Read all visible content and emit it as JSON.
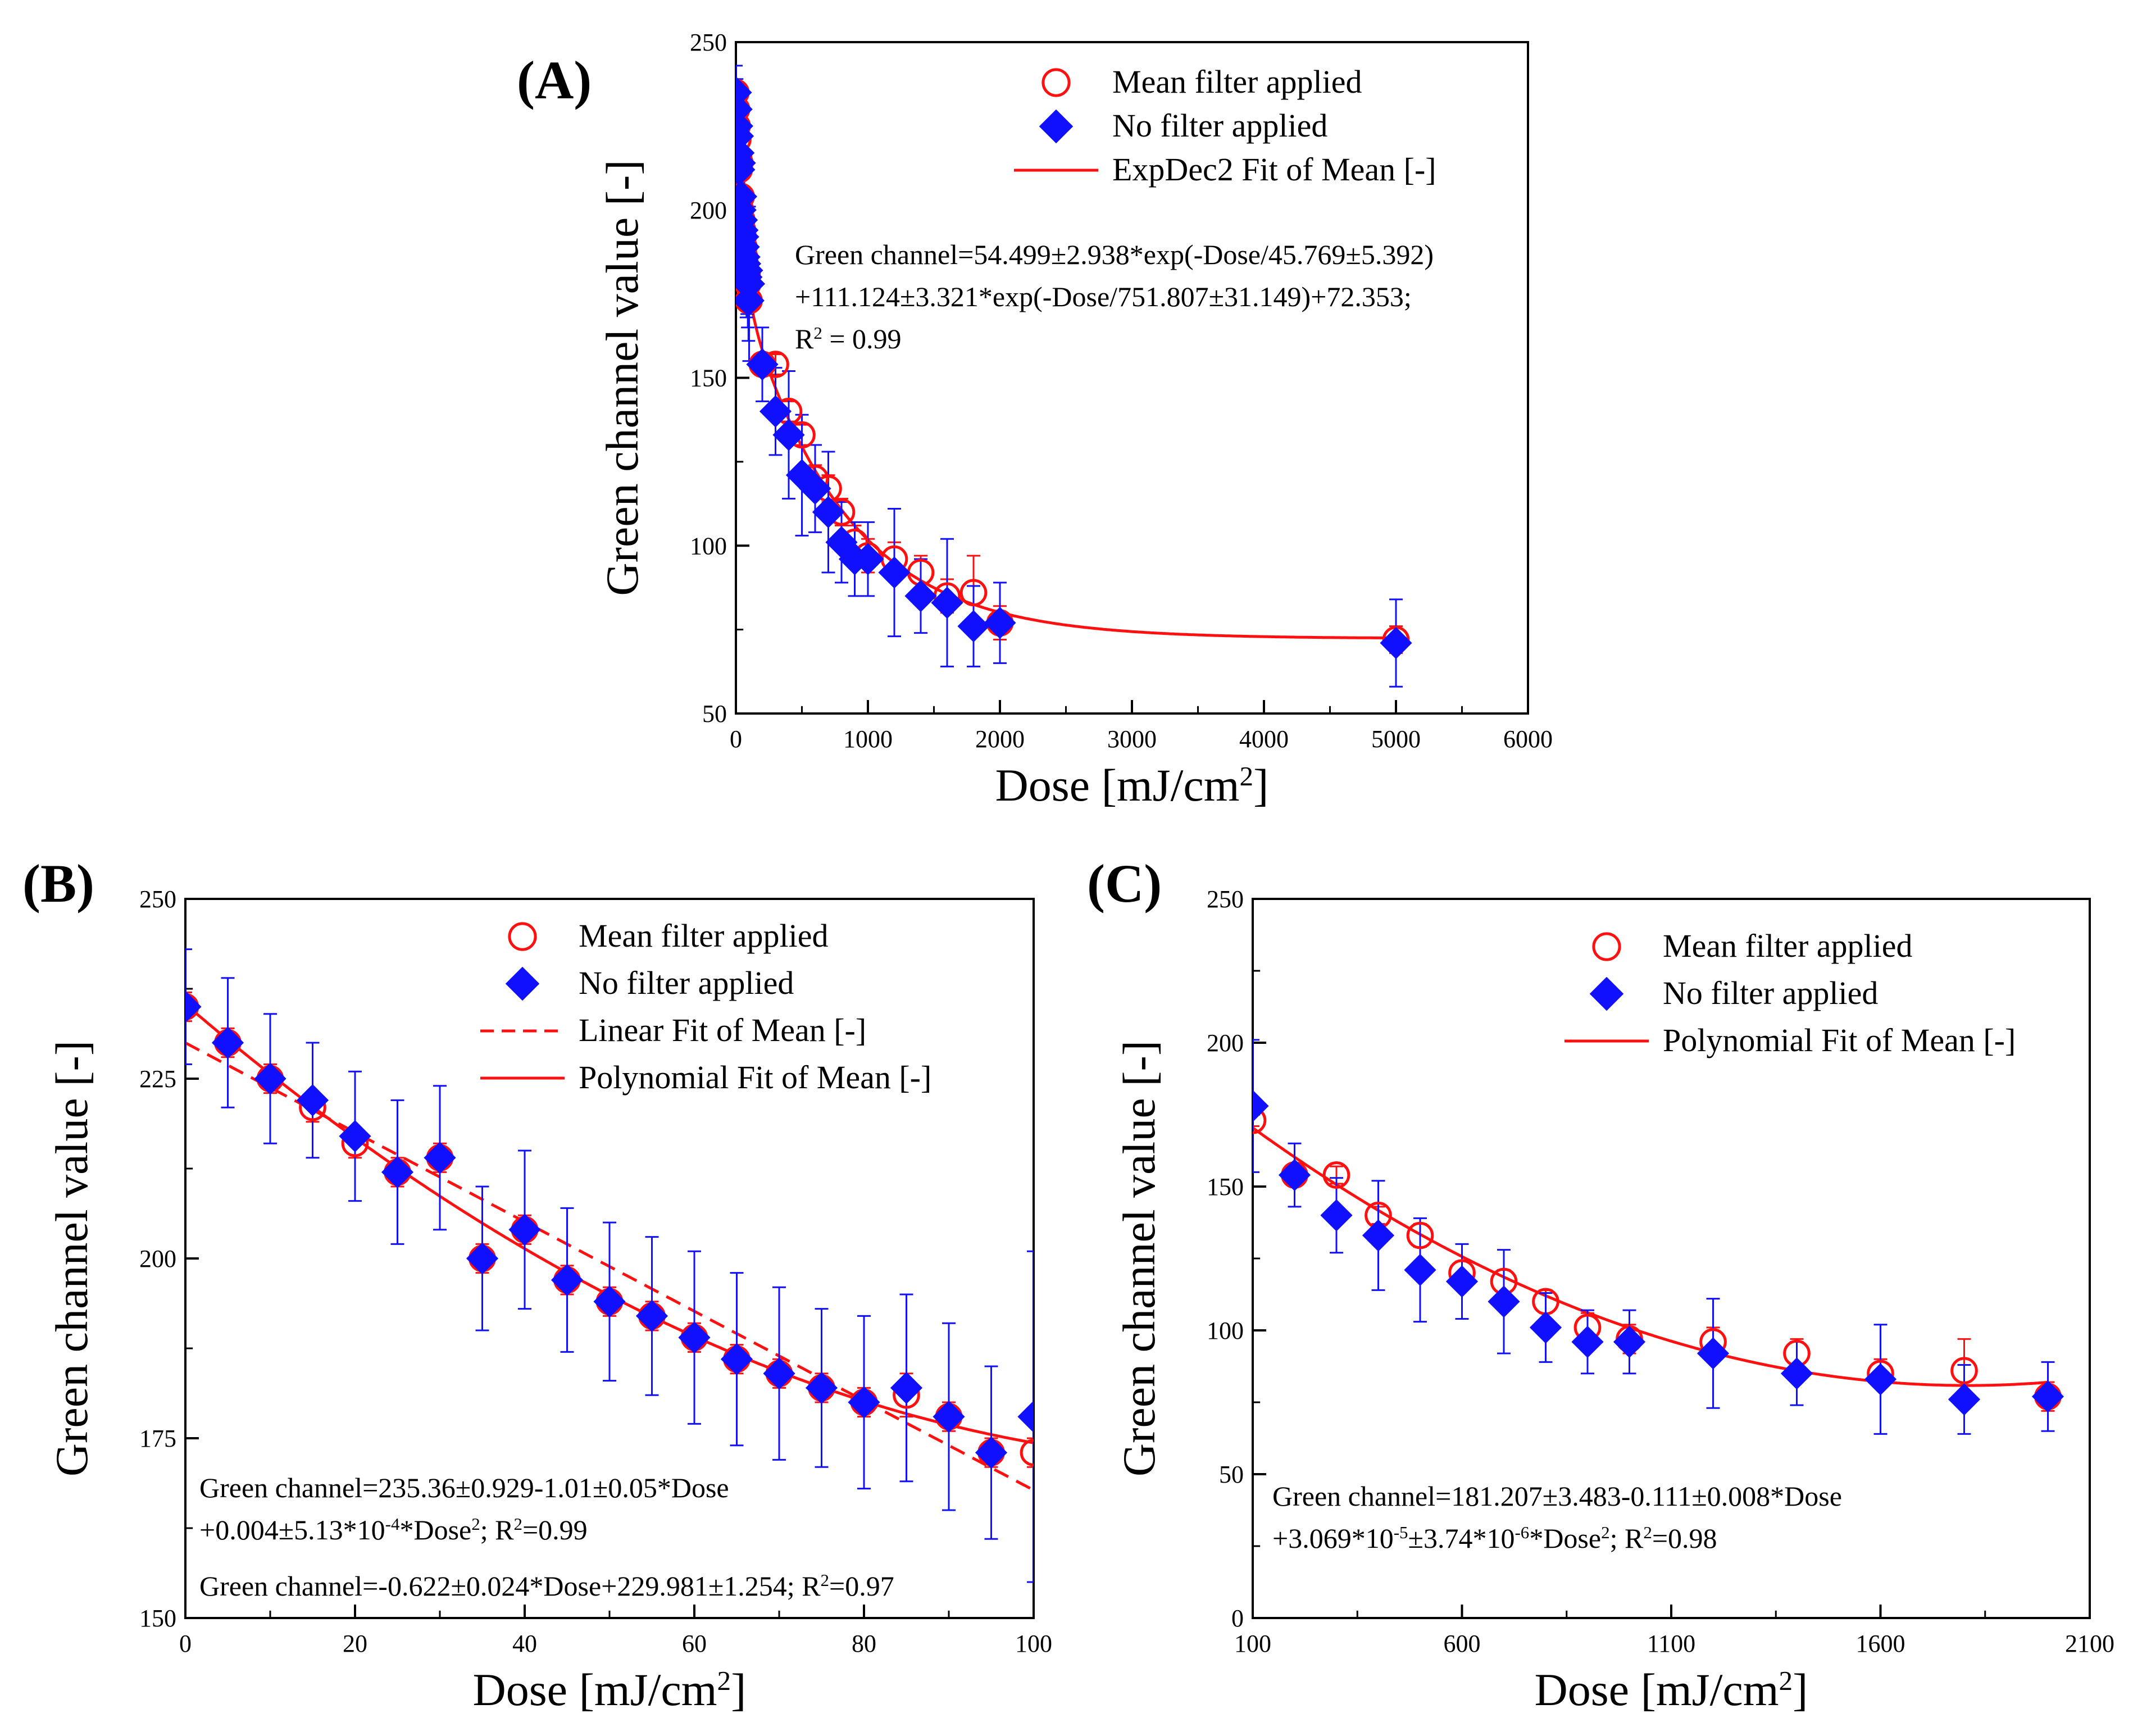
{
  "chart_data": [
    {
      "id": "A",
      "type": "scatter",
      "panel_label": "(A)",
      "xlabel": "Dose [mJ/cm",
      "xlabel_sup": "2",
      "xlabel_end": "]",
      "ylabel": "Green channel value [-]",
      "xlim": [
        0,
        6000
      ],
      "ylim": [
        50,
        250
      ],
      "xticks": [
        0,
        1000,
        2000,
        3000,
        4000,
        5000,
        6000
      ],
      "yticks": [
        50,
        100,
        150,
        200,
        250
      ],
      "legend_position": "top-right",
      "legend": [
        {
          "label": "Mean filter applied",
          "kind": "open-circle",
          "color": "#ff1010"
        },
        {
          "label": "No filter applied",
          "kind": "diamond",
          "color": "#1010ff"
        },
        {
          "label": "ExpDec2 Fit of Mean [-]",
          "kind": "solid-line",
          "color": "#ff1010"
        }
      ],
      "annotations": [
        {
          "text": "Green channel=54.499±2.938*exp(-Dose/45.769±5.392)"
        },
        {
          "text": "+111.124±3.321*exp(-Dose/751.807±31.149)+72.353;"
        },
        {
          "text": "R",
          "sup": "2",
          "after": " = 0.99"
        }
      ],
      "series": [
        {
          "name": "Mean filter applied",
          "marker": "open-circle",
          "color": "#ff1010",
          "x": [
            0,
            5,
            10,
            15,
            20,
            25,
            30,
            35,
            40,
            45,
            50,
            55,
            60,
            65,
            70,
            75,
            80,
            85,
            90,
            95,
            100,
            200,
            300,
            400,
            500,
            600,
            700,
            800,
            900,
            1000,
            1200,
            1400,
            1600,
            1800,
            2000,
            5000
          ],
          "y": [
            235,
            230,
            225,
            221,
            216,
            212,
            214,
            200,
            204,
            197,
            194,
            192,
            189,
            186,
            184,
            182,
            180,
            181,
            178,
            173,
            173,
            154,
            154,
            140,
            133,
            120,
            117,
            110,
            101,
            97,
            96,
            92,
            85,
            86,
            77,
            72
          ],
          "err": [
            2,
            2,
            2,
            2,
            2,
            2,
            2,
            2,
            2,
            2,
            2,
            2,
            2,
            2,
            2,
            2,
            2,
            3,
            2,
            2,
            2,
            2,
            3,
            3,
            3,
            4,
            4,
            4,
            5,
            5,
            5,
            5,
            5,
            11,
            5,
            4
          ]
        },
        {
          "name": "No filter applied",
          "marker": "diamond",
          "color": "#1010ff",
          "x": [
            0,
            5,
            10,
            15,
            20,
            25,
            30,
            35,
            40,
            45,
            50,
            55,
            60,
            65,
            70,
            75,
            80,
            85,
            90,
            95,
            100,
            200,
            300,
            400,
            500,
            600,
            700,
            800,
            900,
            1000,
            1200,
            1400,
            1600,
            1800,
            2000,
            5000
          ],
          "y": [
            235,
            230,
            225,
            222,
            217,
            212,
            214,
            200,
            204,
            197,
            194,
            192,
            189,
            186,
            184,
            182,
            180,
            182,
            178,
            173,
            178,
            154,
            140,
            133,
            121,
            117,
            110,
            101,
            96,
            96,
            92,
            85,
            83,
            76,
            77,
            71
          ],
          "err": [
            8,
            9,
            9,
            8,
            9,
            10,
            10,
            10,
            11,
            10,
            11,
            11,
            12,
            12,
            12,
            11,
            12,
            13,
            13,
            12,
            23,
            11,
            13,
            19,
            18,
            13,
            18,
            12,
            11,
            11,
            19,
            11,
            19,
            12,
            12,
            13
          ]
        }
      ],
      "fit": {
        "name": "ExpDec2 Fit of Mean [-]",
        "model": "exp2",
        "A1": 54.499,
        "t1": 45.769,
        "A2": 111.124,
        "t2": 751.807,
        "y0": 72.353,
        "x_range": [
          0,
          5000
        ],
        "style": "solid",
        "color": "#ff1010"
      }
    },
    {
      "id": "B",
      "type": "scatter",
      "panel_label": "(B)",
      "xlabel": "Dose [mJ/cm",
      "xlabel_sup": "2",
      "xlabel_end": "]",
      "ylabel": "Green channel value [-]",
      "xlim": [
        0,
        100
      ],
      "ylim": [
        150,
        250
      ],
      "xticks": [
        0,
        20,
        40,
        60,
        80,
        100
      ],
      "yticks": [
        150,
        175,
        200,
        225,
        250
      ],
      "legend_position": "top-right",
      "legend": [
        {
          "label": "Mean filter applied",
          "kind": "open-circle",
          "color": "#ff1010"
        },
        {
          "label": "No filter applied",
          "kind": "diamond",
          "color": "#1010ff"
        },
        {
          "label": "Linear Fit of Mean [-]",
          "kind": "dashed-line",
          "color": "#ff1010"
        },
        {
          "label": "Polynomial Fit of Mean [-]",
          "kind": "solid-line",
          "color": "#ff1010"
        }
      ],
      "annotations": [
        {
          "text": "Green channel=235.36±0.929-1.01±0.05*Dose"
        },
        {
          "text": "+0.004±5.13*10",
          "sup": "-4",
          "after": "*Dose",
          "sup2": "2",
          "after2": "; R",
          "sup3": "2",
          "after3": "=0.99"
        },
        {
          "text": "Green channel=-0.622±0.024*Dose+229.981±1.254; R",
          "sup": "2",
          "after": "=0.97"
        }
      ],
      "series": [
        {
          "name": "Mean filter applied",
          "marker": "open-circle",
          "color": "#ff1010",
          "x": [
            0,
            5,
            10,
            15,
            20,
            25,
            30,
            35,
            40,
            45,
            50,
            55,
            60,
            65,
            70,
            75,
            80,
            85,
            90,
            95,
            100
          ],
          "y": [
            235,
            230,
            225,
            221,
            216,
            212,
            214,
            200,
            204,
            197,
            194,
            192,
            189,
            186,
            184,
            182,
            180,
            181,
            178,
            173,
            173
          ],
          "err": [
            2,
            2,
            2,
            2,
            2,
            2,
            2,
            2,
            2,
            2,
            2,
            2,
            2,
            2,
            2,
            2,
            2,
            3,
            2,
            2,
            2
          ]
        },
        {
          "name": "No filter applied",
          "marker": "diamond",
          "color": "#1010ff",
          "x": [
            0,
            5,
            10,
            15,
            20,
            25,
            30,
            35,
            40,
            45,
            50,
            55,
            60,
            65,
            70,
            75,
            80,
            85,
            90,
            95,
            100
          ],
          "y": [
            235,
            230,
            225,
            222,
            217,
            212,
            214,
            200,
            204,
            197,
            194,
            192,
            189,
            186,
            184,
            182,
            180,
            182,
            178,
            173,
            178
          ],
          "err": [
            8,
            9,
            9,
            8,
            9,
            10,
            10,
            10,
            11,
            10,
            11,
            11,
            12,
            12,
            12,
            11,
            12,
            13,
            13,
            12,
            23
          ]
        }
      ],
      "fits": [
        {
          "name": "Linear Fit of Mean [-]",
          "model": "linear",
          "slope": -0.622,
          "intercept": 229.981,
          "x_range": [
            0,
            100
          ],
          "style": "dashed",
          "color": "#ff1010"
        },
        {
          "name": "Polynomial Fit of Mean [-]",
          "model": "poly2",
          "c0": 235.36,
          "c1": -1.01,
          "c2": 0.004,
          "x_range": [
            0,
            100
          ],
          "style": "solid",
          "color": "#ff1010"
        }
      ]
    },
    {
      "id": "C",
      "type": "scatter",
      "panel_label": "(C)",
      "xlabel": "Dose [mJ/cm",
      "xlabel_sup": "2",
      "xlabel_end": "]",
      "ylabel": "Green channel value [-]",
      "xlim": [
        100,
        2100
      ],
      "ylim": [
        0,
        250
      ],
      "xticks": [
        100,
        600,
        1100,
        1600,
        2100
      ],
      "yticks": [
        0,
        50,
        100,
        150,
        200,
        250
      ],
      "legend_position": "top-right",
      "legend": [
        {
          "label": "Mean filter applied",
          "kind": "open-circle",
          "color": "#ff1010"
        },
        {
          "label": "No filter applied",
          "kind": "diamond",
          "color": "#1010ff"
        },
        {
          "label": "Polynomial Fit of Mean [-]",
          "kind": "solid-line",
          "color": "#ff1010"
        }
      ],
      "annotations": [
        {
          "text": "Green channel=181.207±3.483-0.111±0.008*Dose"
        },
        {
          "text": "+3.069*10",
          "sup": "-5",
          "after": "±3.74*10",
          "sup2": "-6",
          "after2": "*Dose",
          "sup3": "2",
          "after3": "; R",
          "sup4": "2",
          "after4": "=0.98"
        }
      ],
      "series": [
        {
          "name": "Mean filter applied",
          "marker": "open-circle",
          "color": "#ff1010",
          "x": [
            100,
            200,
            300,
            400,
            500,
            600,
            700,
            800,
            900,
            1000,
            1200,
            1400,
            1600,
            1800,
            2000
          ],
          "y": [
            173,
            154,
            154,
            140,
            133,
            120,
            117,
            110,
            101,
            97,
            96,
            92,
            85,
            86,
            77
          ],
          "err": [
            2,
            2,
            3,
            3,
            4,
            4,
            4,
            4,
            5,
            5,
            5,
            5,
            5,
            11,
            5
          ]
        },
        {
          "name": "No filter applied",
          "marker": "diamond",
          "color": "#1010ff",
          "x": [
            100,
            200,
            300,
            400,
            500,
            600,
            700,
            800,
            900,
            1000,
            1200,
            1400,
            1600,
            1800,
            2000
          ],
          "y": [
            178,
            154,
            140,
            133,
            121,
            117,
            110,
            101,
            96,
            96,
            92,
            85,
            83,
            76,
            77
          ],
          "err": [
            23,
            11,
            13,
            19,
            18,
            13,
            18,
            12,
            11,
            11,
            19,
            11,
            19,
            12,
            12
          ]
        }
      ],
      "fit": {
        "name": "Polynomial Fit of Mean [-]",
        "model": "poly2",
        "c0": 181.207,
        "c1": -0.111,
        "c2": 3.069e-05,
        "x_range": [
          100,
          2000
        ],
        "style": "solid",
        "color": "#ff1010"
      }
    }
  ]
}
